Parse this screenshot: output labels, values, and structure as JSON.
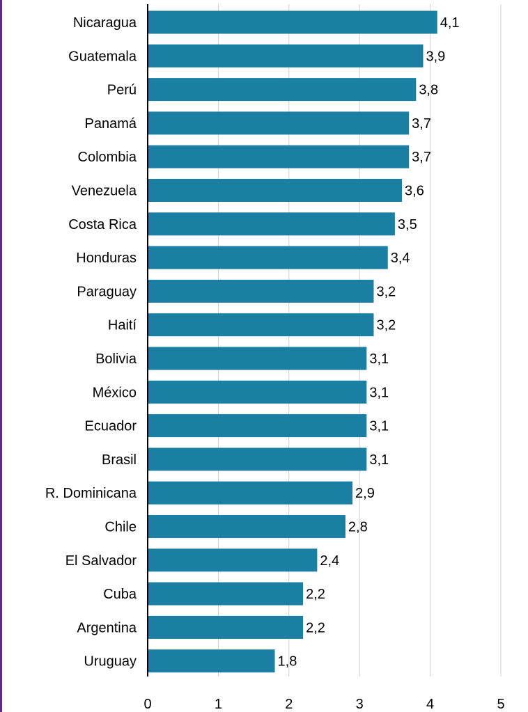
{
  "chart_data": {
    "type": "bar",
    "orientation": "horizontal",
    "categories": [
      "Nicaragua",
      "Guatemala",
      "Perú",
      "Panamá",
      "Colombia",
      "Venezuela",
      "Costa Rica",
      "Honduras",
      "Paraguay",
      "Haití",
      "Bolivia",
      "México",
      "Ecuador",
      "Brasil",
      "R. Dominicana",
      "Chile",
      "El Salvador",
      "Cuba",
      "Argentina",
      "Uruguay"
    ],
    "values": [
      4.1,
      3.9,
      3.8,
      3.7,
      3.7,
      3.6,
      3.5,
      3.4,
      3.2,
      3.2,
      3.1,
      3.1,
      3.1,
      3.1,
      2.9,
      2.8,
      2.4,
      2.2,
      2.2,
      1.8
    ],
    "value_labels": [
      "4,1",
      "3,9",
      "3,8",
      "3,7",
      "3,7",
      "3,6",
      "3,5",
      "3,4",
      "3,2",
      "3,2",
      "3,1",
      "3,1",
      "3,1",
      "3,1",
      "2,9",
      "2,8",
      "2,4",
      "2,2",
      "2,2",
      "1,8"
    ],
    "x_ticks": [
      "0",
      "1",
      "2",
      "3",
      "4",
      "5"
    ],
    "xlim": [
      0,
      5
    ],
    "grid": "vertical",
    "title": "",
    "xlabel": "",
    "ylabel": "",
    "bar_color": "#1a7fa3",
    "grid_color": "#d0d0d0",
    "axis_color": "#000000",
    "accent_rule_color": "#5b2a86"
  }
}
